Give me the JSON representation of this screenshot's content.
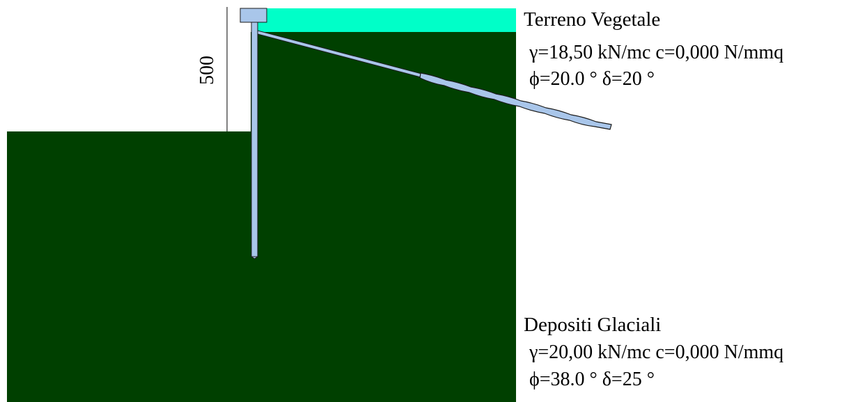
{
  "colors": {
    "background": "#ffffff",
    "topsoil": "#00ffc8",
    "deposits": "#004000",
    "wall": "#a9c6ea",
    "wall_outline": "#1a1a1a",
    "dimension_line": "#000000"
  },
  "dimension": {
    "label": "500"
  },
  "layers": [
    {
      "name": "Terreno Vegetale",
      "gamma": "γ=18,50 kN/mc c=0,000 N/mmq",
      "phi_delta": "ϕ=20.0 °  δ=20 °"
    },
    {
      "name": "Depositi Glaciali",
      "gamma": "γ=20,00 kN/mc c=0,000 N/mmq",
      "phi_delta": "ϕ=38.0 °  δ=25 °"
    }
  ]
}
